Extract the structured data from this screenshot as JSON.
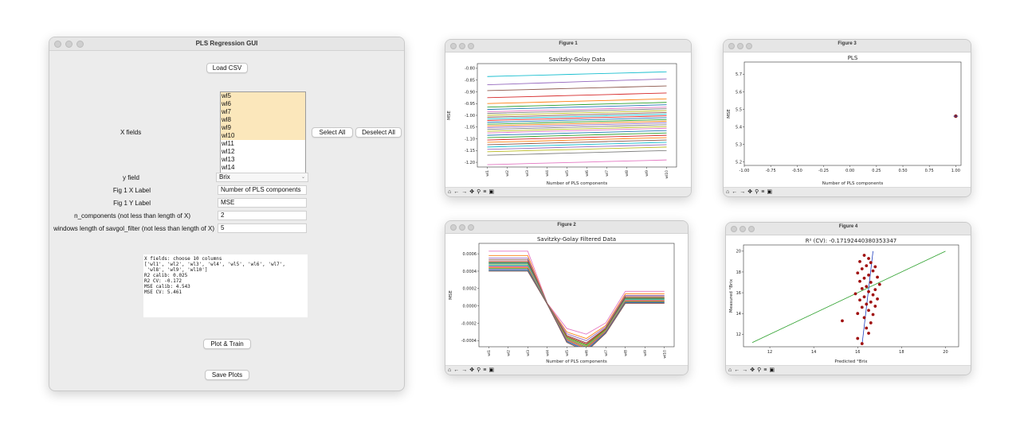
{
  "main": {
    "title": "PLS Regression GUI",
    "load_csv": "Load CSV",
    "x_fields_label": "X fields",
    "x_fields": [
      {
        "label": "wl5",
        "selected": true
      },
      {
        "label": "wl6",
        "selected": true
      },
      {
        "label": "wl7",
        "selected": true
      },
      {
        "label": "wl8",
        "selected": true
      },
      {
        "label": "wl9",
        "selected": true
      },
      {
        "label": "wl10",
        "selected": true
      },
      {
        "label": "wl11",
        "selected": false
      },
      {
        "label": "wl12",
        "selected": false
      },
      {
        "label": "wl13",
        "selected": false
      },
      {
        "label": "wl14",
        "selected": false
      }
    ],
    "select_all": "Select All",
    "deselect_all": "Deselect All",
    "y_field_label": "y field",
    "y_field_value": "Brix",
    "fig1_x_label": "Fig 1 X Label",
    "fig1_x_value": "Number of PLS components",
    "fig1_y_label": "Fig 1 Y Label",
    "fig1_y_value": "MSE",
    "ncomp_label": "n_components (not less than length of X)",
    "ncomp_value": "2",
    "window_label": "windows length of savgol_filter (not less than length of X)",
    "window_value": "5",
    "output_lines": [
      "X fields: choose 10 columns",
      "['wl1', 'wl2', 'wl3', 'wl4', 'wl5', 'wl6', 'wl7',",
      " 'wl8', 'wl9', 'wl10']",
      "R2 calib: 0.025",
      "R2 CV: -0.172",
      "MSE calib: 4.543",
      "MSE CV: 5.461"
    ],
    "plot_train": "Plot & Train",
    "save_plots": "Save Plots"
  },
  "toolbar_icons": [
    "home-icon",
    "back-arrow-icon",
    "forward-arrow-icon",
    "pan-icon",
    "zoom-icon",
    "configure-icon",
    "save-icon"
  ],
  "toolbar_glyphs": [
    "⌂",
    "←",
    "→",
    "✥",
    "⚲",
    "≡",
    "▣"
  ],
  "figures": [
    {
      "window_title": "Figure 1",
      "plot_title": "Savitzky-Golay Data",
      "xlabel": "Number of PLS components",
      "ylabel": "MSE"
    },
    {
      "window_title": "Figure 2",
      "plot_title": "Savitzky-Golay Filtered Data",
      "xlabel": "Number of PLS components",
      "ylabel": "MSE"
    },
    {
      "window_title": "Figure 3",
      "plot_title": "PLS",
      "xlabel": "Number of PLS components",
      "ylabel": "MSE"
    },
    {
      "window_title": "Figure 4",
      "plot_title": "R² (CV): -0.17192440380353347",
      "xlabel": "Predicted °Brix",
      "ylabel": "Measured °Brix"
    }
  ],
  "chart_data": [
    {
      "type": "line",
      "title": "Savitzky-Golay Data",
      "xlabel": "Number of PLS components",
      "ylabel": "MSE",
      "categories": [
        "wl1",
        "wl2",
        "wl3",
        "wl4",
        "wl5",
        "wl6",
        "wl7",
        "wl8",
        "wl9",
        "wl10"
      ],
      "ylim": [
        -1.22,
        -0.78
      ],
      "yticks": [
        -0.8,
        -0.85,
        -0.9,
        -0.95,
        -1.0,
        -1.05,
        -1.1,
        -1.15,
        -1.2
      ],
      "series": [
        {
          "start": -0.835,
          "end": -0.815,
          "color": "#17becf"
        },
        {
          "start": -0.87,
          "end": -0.845,
          "color": "#9467bd"
        },
        {
          "start": -0.895,
          "end": -0.875,
          "color": "#8c564b"
        },
        {
          "start": -0.925,
          "end": -0.905,
          "color": "#d62728"
        },
        {
          "start": -0.95,
          "end": -0.93,
          "color": "#ff7f0e"
        },
        {
          "start": -0.965,
          "end": -0.945,
          "color": "#2ca02c"
        },
        {
          "start": -0.975,
          "end": -0.955,
          "color": "#1f77b4"
        },
        {
          "start": -0.985,
          "end": -0.965,
          "color": "#e377c2"
        },
        {
          "start": -0.992,
          "end": -0.972,
          "color": "#7f7f7f"
        },
        {
          "start": -1.0,
          "end": -0.98,
          "color": "#bcbd22"
        },
        {
          "start": -1.008,
          "end": -0.988,
          "color": "#8c564b"
        },
        {
          "start": -1.015,
          "end": -0.995,
          "color": "#17becf"
        },
        {
          "start": -1.022,
          "end": -1.002,
          "color": "#d62728"
        },
        {
          "start": -1.03,
          "end": -1.01,
          "color": "#1f77b4"
        },
        {
          "start": -1.038,
          "end": -1.018,
          "color": "#2ca02c"
        },
        {
          "start": -1.045,
          "end": -1.025,
          "color": "#ff7f0e"
        },
        {
          "start": -1.052,
          "end": -1.032,
          "color": "#9467bd"
        },
        {
          "start": -1.06,
          "end": -1.04,
          "color": "#7f7f7f"
        },
        {
          "start": -1.068,
          "end": -1.048,
          "color": "#bcbd22"
        },
        {
          "start": -1.075,
          "end": -1.055,
          "color": "#e377c2"
        },
        {
          "start": -1.085,
          "end": -1.065,
          "color": "#1f77b4"
        },
        {
          "start": -1.095,
          "end": -1.075,
          "color": "#2ca02c"
        },
        {
          "start": -1.105,
          "end": -1.085,
          "color": "#d62728"
        },
        {
          "start": -1.115,
          "end": -1.095,
          "color": "#ff7f0e"
        },
        {
          "start": -1.125,
          "end": -1.105,
          "color": "#8c564b"
        },
        {
          "start": -1.135,
          "end": -1.115,
          "color": "#17becf"
        },
        {
          "start": -1.145,
          "end": -1.125,
          "color": "#9467bd"
        },
        {
          "start": -1.155,
          "end": -1.135,
          "color": "#bcbd22"
        },
        {
          "start": -1.17,
          "end": -1.15,
          "color": "#7f7f7f"
        },
        {
          "start": -1.21,
          "end": -1.19,
          "color": "#e377c2"
        }
      ]
    },
    {
      "type": "line",
      "title": "Savitzky-Golay Filtered Data",
      "xlabel": "Number of PLS components",
      "ylabel": "MSE",
      "categories": [
        "wl1",
        "wl2",
        "wl3",
        "wl4",
        "wl5",
        "wl6",
        "wl7",
        "wl8",
        "wl9",
        "wl10"
      ],
      "ylim": [
        -0.00047,
        0.00072
      ],
      "yticks": [
        0.0006,
        0.0004,
        0.0002,
        0.0,
        -0.0002,
        -0.0004
      ],
      "series_profile": [
        1.0,
        1.0,
        1.0,
        0.0,
        -1.0,
        -1.25,
        -0.75,
        0.15,
        0.15,
        0.15
      ],
      "series": [
        {
          "level": 0.00063,
          "depth": 0.00026,
          "color": "#e377c2"
        },
        {
          "level": 0.00058,
          "depth": 0.0003,
          "color": "#ff7f0e"
        },
        {
          "level": 0.00055,
          "depth": 0.00032,
          "color": "#9467bd"
        },
        {
          "level": 0.00053,
          "depth": 0.00034,
          "color": "#8c564b"
        },
        {
          "level": 0.00051,
          "depth": 0.00035,
          "color": "#d62728"
        },
        {
          "level": 0.0005,
          "depth": 0.00036,
          "color": "#2ca02c"
        },
        {
          "level": 0.00049,
          "depth": 0.00037,
          "color": "#1f77b4"
        },
        {
          "level": 0.00048,
          "depth": 0.00037,
          "color": "#bcbd22"
        },
        {
          "level": 0.00047,
          "depth": 0.00038,
          "color": "#17becf"
        },
        {
          "level": 0.00046,
          "depth": 0.00038,
          "color": "#7f7f7f"
        },
        {
          "level": 0.00045,
          "depth": 0.00039,
          "color": "#e377c2"
        },
        {
          "level": 0.00044,
          "depth": 0.00039,
          "color": "#ff7f0e"
        },
        {
          "level": 0.00043,
          "depth": 0.0004,
          "color": "#2ca02c"
        },
        {
          "level": 0.00042,
          "depth": 0.0004,
          "color": "#9467bd"
        },
        {
          "level": 0.00041,
          "depth": 0.00041,
          "color": "#1f77b4"
        },
        {
          "level": 0.0004,
          "depth": 0.00042,
          "color": "#8c564b"
        }
      ]
    },
    {
      "type": "scatter",
      "title": "PLS",
      "xlabel": "Number of PLS components",
      "ylabel": "MSE",
      "xlim": [
        -1.0,
        1.05
      ],
      "ylim": [
        5.18,
        5.77
      ],
      "xticks": [
        -1.0,
        -0.75,
        -0.5,
        -0.25,
        0.0,
        0.25,
        0.5,
        0.75,
        1.0
      ],
      "yticks": [
        5.2,
        5.3,
        5.4,
        5.5,
        5.6,
        5.7
      ],
      "points": [
        {
          "x": 1.0,
          "y": 5.461
        }
      ]
    },
    {
      "type": "scatter",
      "title": "R² (CV): -0.17192440380353347",
      "xlabel": "Predicted °Brix",
      "ylabel": "Measured °Brix",
      "xlim": [
        10.8,
        20.6
      ],
      "ylim": [
        10.8,
        20.6
      ],
      "xticks": [
        12,
        14,
        16,
        18,
        20
      ],
      "yticks": [
        12,
        14,
        16,
        18,
        20
      ],
      "reference_line": {
        "x": [
          11.2,
          20.0
        ],
        "y": [
          11.2,
          20.0
        ],
        "color": "#2ca02c"
      },
      "fit_line": {
        "x": [
          16.2,
          16.7
        ],
        "y": [
          11.0,
          20.0
        ],
        "color": "#1f3fbf"
      },
      "points": [
        {
          "x": 16.3,
          "y": 19.6
        },
        {
          "x": 16.5,
          "y": 19.3
        },
        {
          "x": 16.1,
          "y": 19.0
        },
        {
          "x": 16.6,
          "y": 18.9
        },
        {
          "x": 16.4,
          "y": 18.6
        },
        {
          "x": 16.8,
          "y": 18.5
        },
        {
          "x": 16.2,
          "y": 18.3
        },
        {
          "x": 16.7,
          "y": 18.1
        },
        {
          "x": 16.0,
          "y": 17.9
        },
        {
          "x": 16.5,
          "y": 17.7
        },
        {
          "x": 16.9,
          "y": 17.5
        },
        {
          "x": 16.3,
          "y": 17.4
        },
        {
          "x": 16.1,
          "y": 17.1
        },
        {
          "x": 16.6,
          "y": 17.0
        },
        {
          "x": 17.0,
          "y": 16.8
        },
        {
          "x": 16.4,
          "y": 16.6
        },
        {
          "x": 16.2,
          "y": 16.4
        },
        {
          "x": 16.8,
          "y": 16.3
        },
        {
          "x": 16.5,
          "y": 16.1
        },
        {
          "x": 15.9,
          "y": 15.9
        },
        {
          "x": 16.7,
          "y": 15.8
        },
        {
          "x": 16.3,
          "y": 15.6
        },
        {
          "x": 16.9,
          "y": 15.4
        },
        {
          "x": 16.1,
          "y": 15.3
        },
        {
          "x": 16.6,
          "y": 15.1
        },
        {
          "x": 16.4,
          "y": 14.9
        },
        {
          "x": 16.8,
          "y": 14.7
        },
        {
          "x": 16.2,
          "y": 14.6
        },
        {
          "x": 16.5,
          "y": 14.3
        },
        {
          "x": 16.0,
          "y": 14.0
        },
        {
          "x": 16.7,
          "y": 13.9
        },
        {
          "x": 16.3,
          "y": 13.6
        },
        {
          "x": 15.3,
          "y": 13.3
        },
        {
          "x": 16.6,
          "y": 13.1
        },
        {
          "x": 16.4,
          "y": 12.6
        },
        {
          "x": 16.5,
          "y": 12.1
        },
        {
          "x": 16.0,
          "y": 11.6
        },
        {
          "x": 16.2,
          "y": 11.1
        }
      ]
    }
  ]
}
